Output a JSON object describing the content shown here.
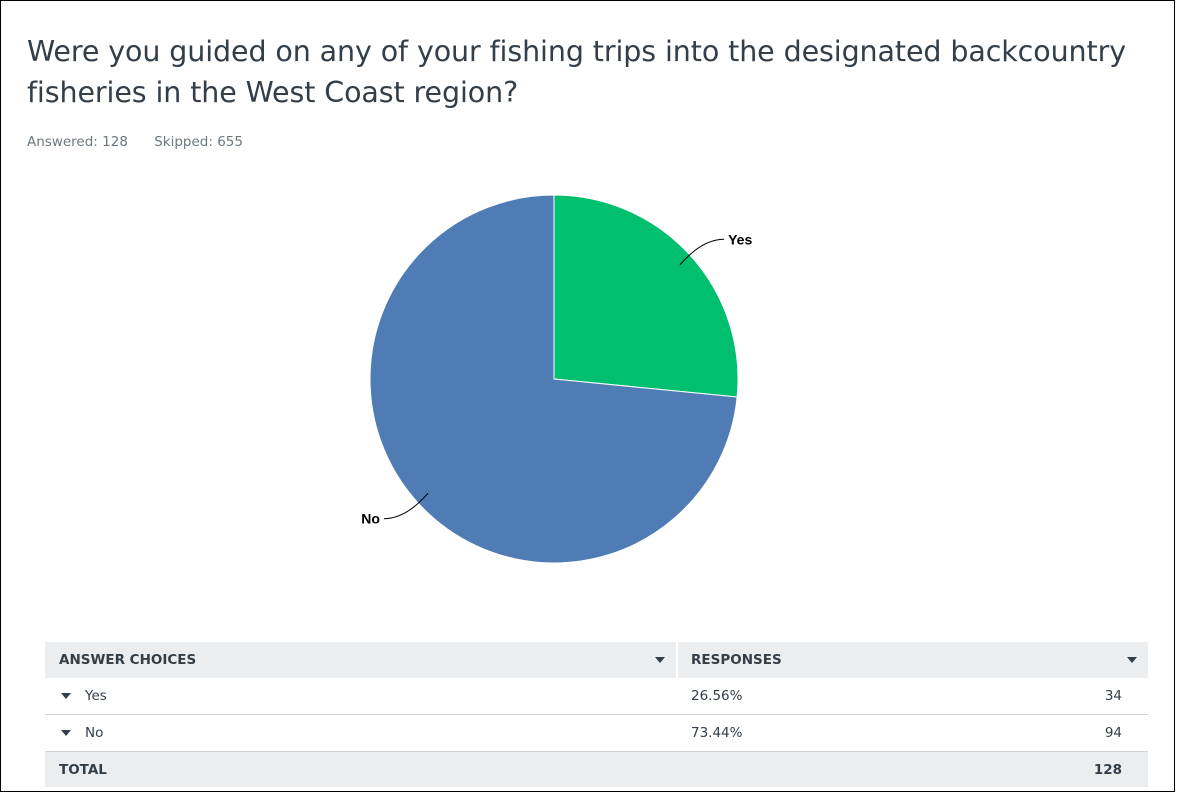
{
  "question": {
    "title": "Were you guided on any of your fishing trips into the designated backcountry fisheries in the West Coast region?",
    "answered_label": "Answered: 128",
    "skipped_label": "Skipped: 655"
  },
  "chart_data": {
    "type": "pie",
    "categories": [
      "Yes",
      "No"
    ],
    "values": [
      26.56,
      73.44
    ],
    "colors": [
      "#00bf6f",
      "#507cb6"
    ]
  },
  "table": {
    "headers": {
      "answer_choices": "ANSWER CHOICES",
      "responses": "RESPONSES"
    },
    "rows": [
      {
        "choice": "Yes",
        "percent": "26.56%",
        "count": "34"
      },
      {
        "choice": "No",
        "percent": "73.44%",
        "count": "94"
      }
    ],
    "total": {
      "label": "TOTAL",
      "count": "128"
    }
  }
}
